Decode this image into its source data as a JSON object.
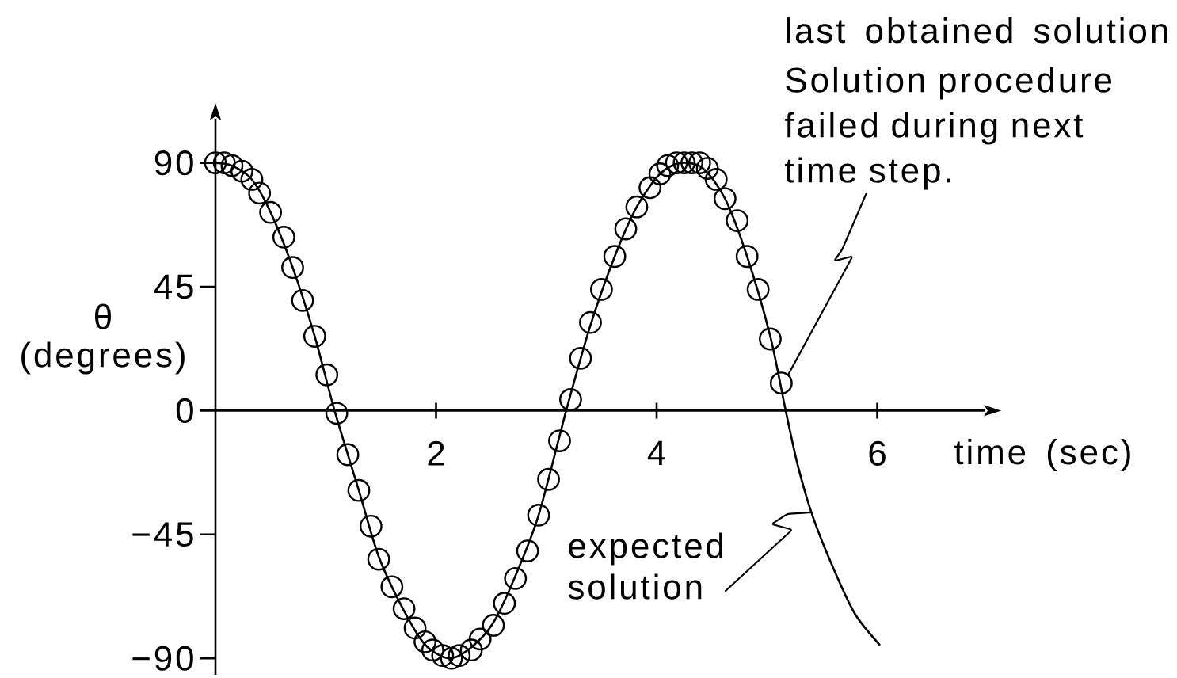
{
  "chart_data": {
    "type": "line",
    "xlabel": "time (sec)",
    "ylabel": "θ (degrees)",
    "xlim": [
      0,
      6.98
    ],
    "ylim": [
      -96,
      106
    ],
    "xticks": [
      2,
      4,
      6
    ],
    "yticks": [
      {
        "value": -90,
        "label": "−90"
      },
      {
        "value": -45,
        "label": "−45"
      },
      0,
      45,
      90
    ],
    "series": [
      {
        "color": "#000000",
        "x": [
          0,
          0.15,
          0.33,
          0.5,
          0.7,
          0.9,
          1.08,
          1.3,
          1.48,
          1.7,
          1.9,
          2.12,
          2.32,
          2.52,
          2.72,
          2.93,
          3.18,
          3.4,
          3.62,
          3.82,
          4.03,
          4.22,
          4.42,
          4.62,
          4.82,
          5.03,
          5.17,
          5.28,
          5.42,
          5.61,
          5.8,
          6.02
        ],
        "values": [
          90,
          89,
          84,
          72,
          52,
          27,
          0,
          -29,
          -53,
          -72,
          -85,
          -90,
          -86,
          -77,
          -60,
          -38,
          0,
          31,
          56,
          74,
          86,
          90,
          88,
          77,
          56,
          27,
          0,
          -20,
          -39,
          -58,
          -74,
          -85
        ]
      },
      {
        "type": "scatter",
        "marker": "circle",
        "color": "#000000",
        "x": [
          0,
          0.08,
          0.15,
          0.24,
          0.33,
          0.4,
          0.5,
          0.62,
          0.7,
          0.79,
          0.9,
          1.01,
          1.1,
          1.2,
          1.3,
          1.41,
          1.48,
          1.6,
          1.71,
          1.81,
          1.9,
          1.97,
          2.06,
          2.14,
          2.21,
          2.32,
          2.4,
          2.52,
          2.62,
          2.72,
          2.83,
          2.93,
          3.02,
          3.12,
          3.22,
          3.31,
          3.4,
          3.5,
          3.62,
          3.72,
          3.82,
          3.94,
          4.03,
          4.1,
          4.18,
          4.25,
          4.32,
          4.39,
          4.46,
          4.54,
          4.62,
          4.73,
          4.82,
          4.92,
          5.03,
          5.13
        ],
        "values": [
          90,
          90,
          89,
          87,
          84,
          79,
          72,
          63,
          52,
          40,
          27,
          13,
          -1,
          -16,
          -29,
          -42,
          -54,
          -64,
          -72,
          -79,
          -84,
          -87,
          -89,
          -90,
          -89,
          -87,
          -83,
          -78,
          -70,
          -61,
          -51,
          -38,
          -25,
          -11,
          4,
          19,
          32,
          44,
          56,
          66,
          74,
          81,
          86,
          89,
          90,
          90,
          90,
          90,
          88,
          84,
          77,
          69,
          56,
          44,
          26,
          10
        ]
      }
    ],
    "annotations": [
      "last obtained solution",
      {
        "text": "Solution procedure failed during next time step.",
        "x": 5.13,
        "y": 10
      },
      {
        "text": "expected solution",
        "x": 5.4,
        "y": -37
      }
    ]
  }
}
